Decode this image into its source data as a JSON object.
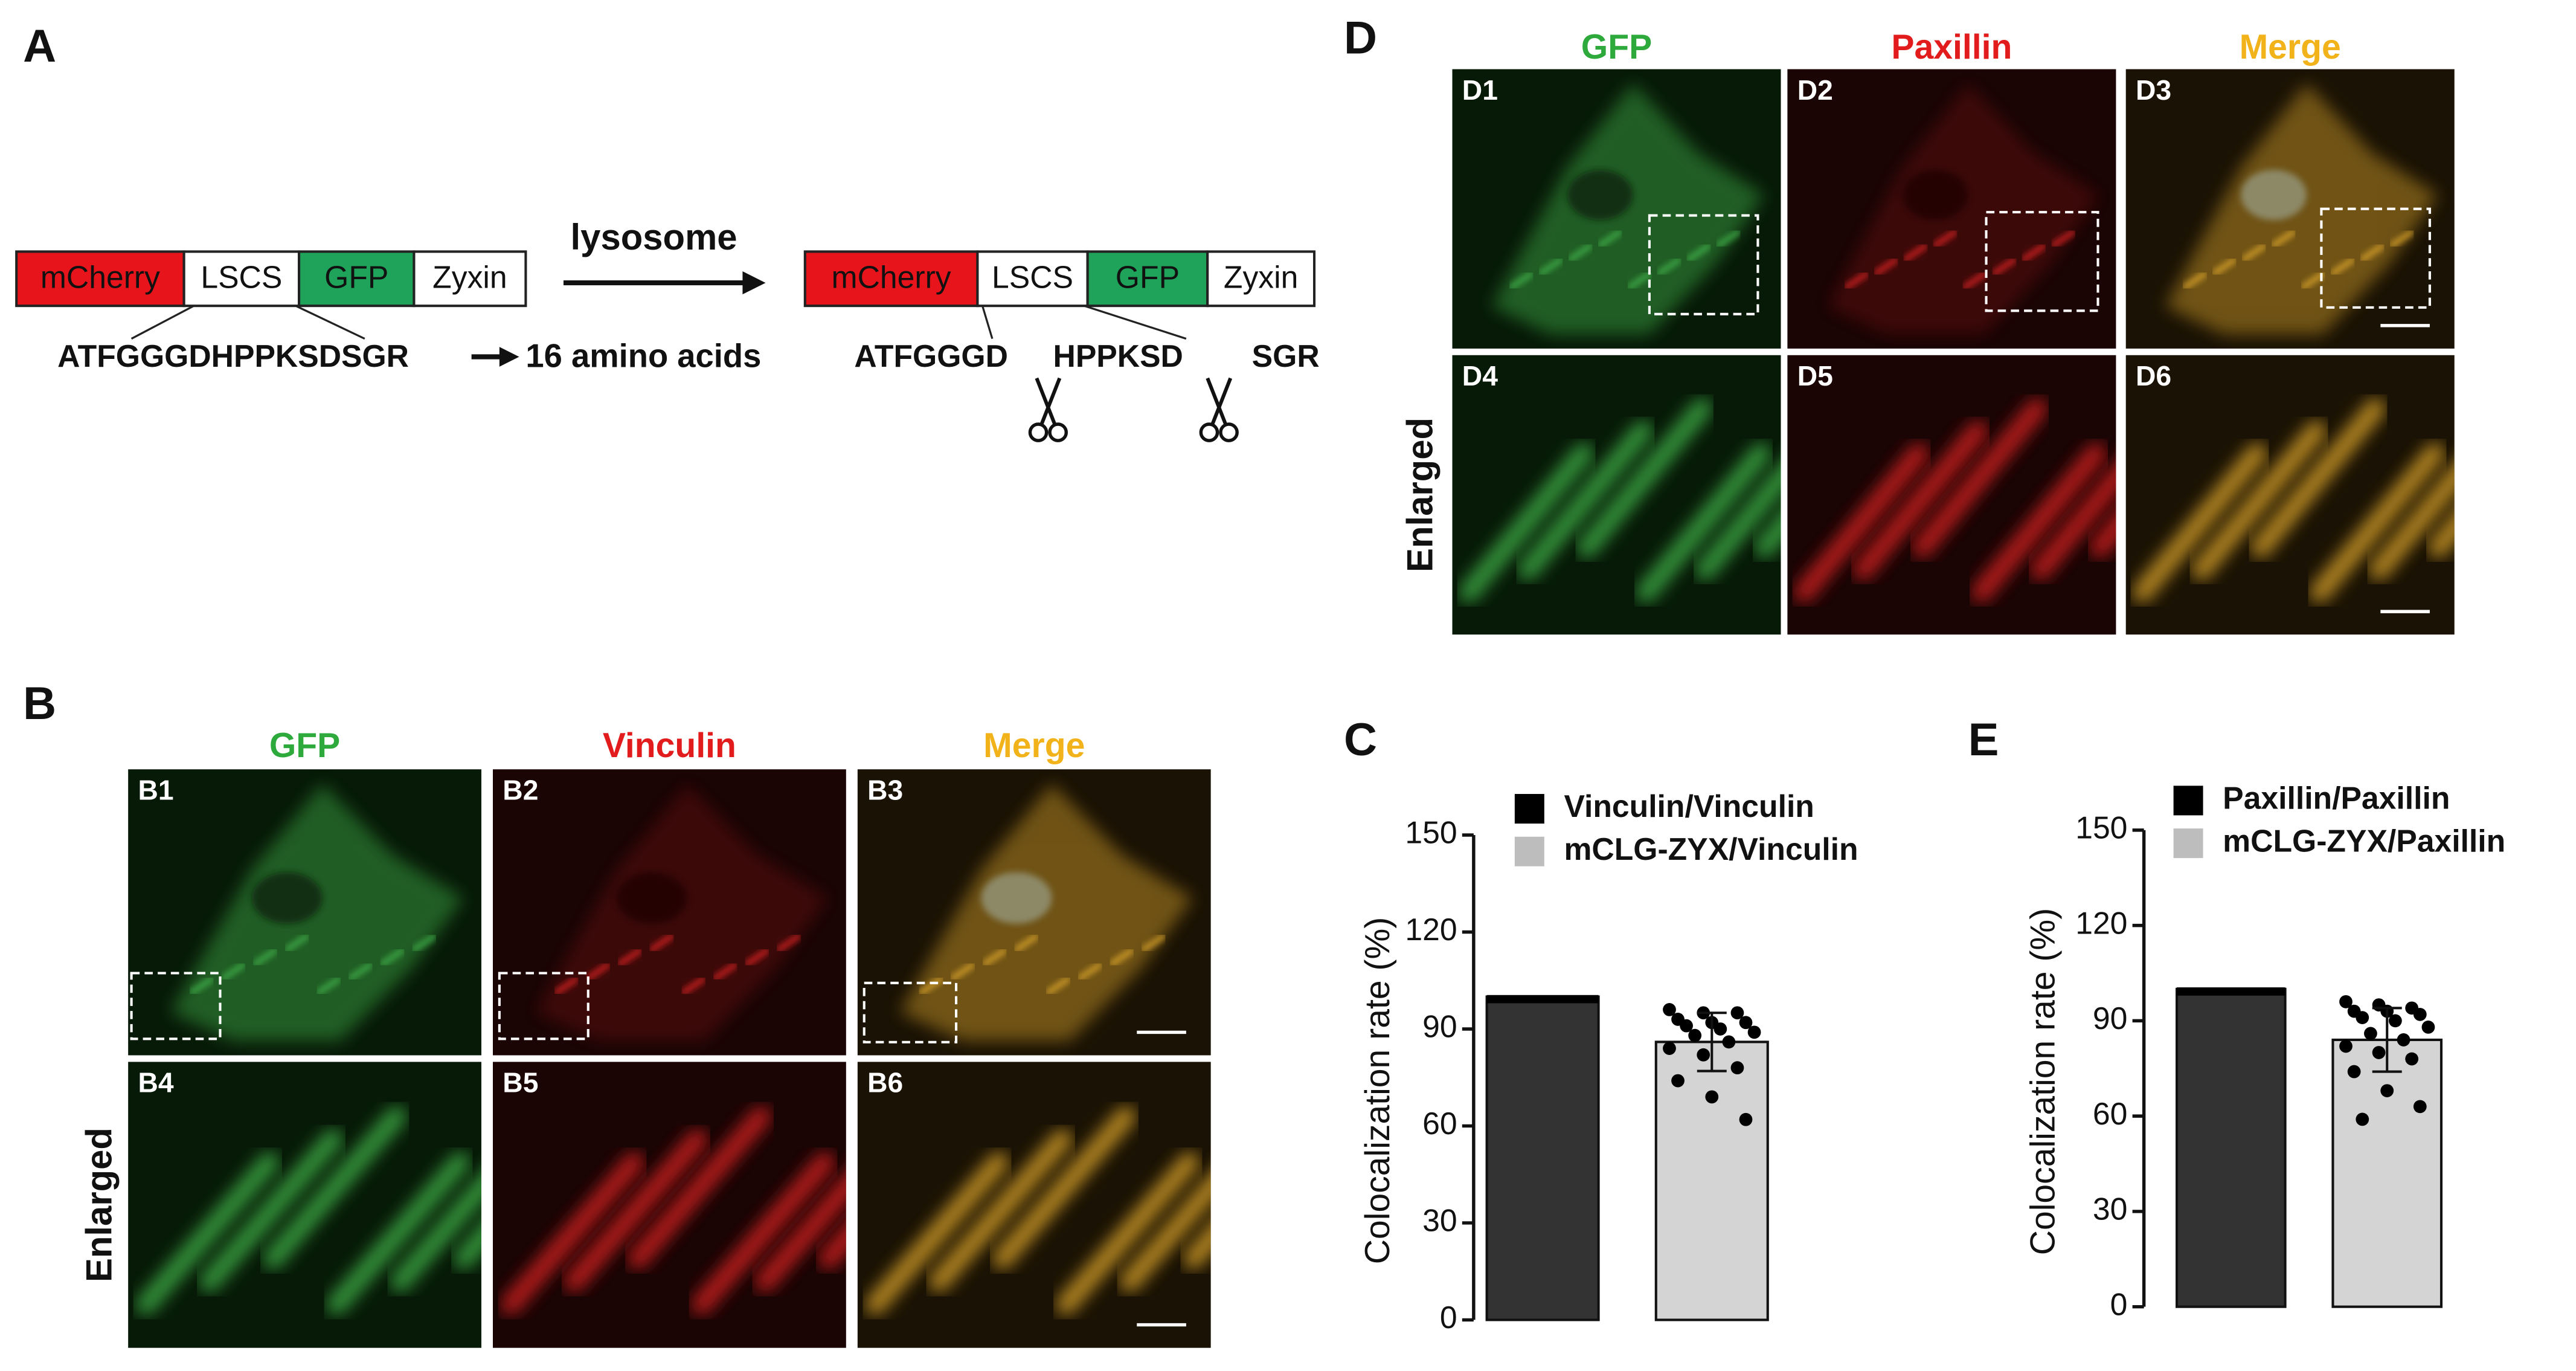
{
  "panel_a": {
    "label": "A",
    "construct": [
      "mCherry",
      "LSCS",
      "GFP",
      "Zyxin"
    ],
    "arrow_label": "lysosome",
    "sequence": "ATFGGGDHPPKSDSGR",
    "sequence_note": "16 amino acids",
    "cleaved": [
      "ATFGGGD",
      "HPPKSD",
      "SGR"
    ]
  },
  "panel_b": {
    "label": "B",
    "channels": [
      "GFP",
      "Vinculin",
      "Merge"
    ],
    "images": [
      "B1",
      "B2",
      "B3",
      "B4",
      "B5",
      "B6"
    ],
    "row_label": "Enlarged"
  },
  "panel_d": {
    "label": "D",
    "channels": [
      "GFP",
      "Paxillin",
      "Merge"
    ],
    "images": [
      "D1",
      "D2",
      "D3",
      "D4",
      "D5",
      "D6"
    ],
    "row_label": "Enlarged"
  },
  "chart_data": [
    {
      "type": "bar",
      "label": "C",
      "ylabel": "Colocalization rate (%)",
      "ylim": [
        0,
        150
      ],
      "yticks": [
        0,
        30,
        60,
        90,
        120,
        150
      ],
      "series": [
        {
          "name": "Vinculin/Vinculin",
          "color": "#333333",
          "values": [
            100
          ]
        },
        {
          "name": "mCLG-ZYX/Vinculin",
          "color": "#d4d4d4",
          "values": [
            86
          ],
          "error": [
            9
          ],
          "points": [
            [
              96,
              95,
              95,
              93,
              92,
              92,
              91,
              90,
              89,
              88,
              86,
              84,
              82,
              78,
              74,
              69,
              62
            ]
          ]
        }
      ]
    },
    {
      "type": "bar",
      "label": "E",
      "ylabel": "Colocalization rate (%)",
      "ylim": [
        0,
        150
      ],
      "yticks": [
        0,
        30,
        60,
        90,
        120,
        150
      ],
      "series": [
        {
          "name": "Paxillin/Paxillin",
          "color": "#333333",
          "values": [
            100
          ]
        },
        {
          "name": "mCLG-ZYX/Paxillin",
          "color": "#d4d4d4",
          "values": [
            84
          ],
          "error": [
            10
          ],
          "points": [
            [
              96,
              95,
              94,
              93,
              93,
              92,
              91,
              90,
              88,
              86,
              84,
              82,
              80,
              78,
              74,
              68,
              63,
              59
            ]
          ]
        }
      ]
    }
  ]
}
